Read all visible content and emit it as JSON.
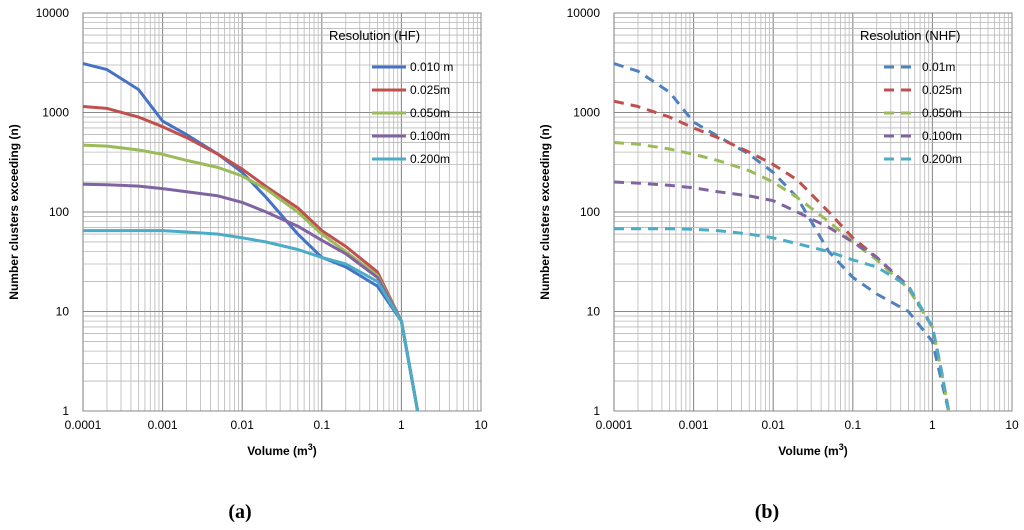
{
  "chart_data": [
    {
      "type": "line",
      "panel_label": "(a)",
      "xlabel": "Volume (m",
      "xlabel_sup": "3",
      "xlabel_end": ")",
      "ylabel": "Number clusters exceeding (n)",
      "x_scale": "log",
      "y_scale": "log",
      "xlim": [
        0.0001,
        10
      ],
      "ylim": [
        1,
        10000
      ],
      "x_ticks": [
        "0.0001",
        "0.001",
        "0.01",
        "0.1",
        "1",
        "10"
      ],
      "y_ticks": [
        "1",
        "10",
        "100",
        "1000",
        "10000"
      ],
      "grid": true,
      "line_style": "solid",
      "legend_title": "Resolution (HF)",
      "legend_position": "top-right",
      "series": [
        {
          "name": "0.010 m",
          "color": "#4472C4",
          "x": [
            0.0001,
            0.0002,
            0.0005,
            0.001,
            0.002,
            0.005,
            0.01,
            0.02,
            0.05,
            0.1,
            0.2,
            0.5,
            1,
            1.3,
            1.6
          ],
          "y": [
            3100,
            2700,
            1700,
            820,
            600,
            380,
            250,
            140,
            60,
            35,
            28,
            18,
            8,
            2.5,
            1
          ]
        },
        {
          "name": "0.025m",
          "color": "#C0504D",
          "x": [
            0.0001,
            0.0002,
            0.0005,
            0.001,
            0.002,
            0.005,
            0.01,
            0.02,
            0.05,
            0.1,
            0.2,
            0.5,
            1,
            1.3,
            1.6
          ],
          "y": [
            1150,
            1100,
            900,
            720,
            560,
            380,
            270,
            180,
            110,
            65,
            45,
            25,
            8,
            2.5,
            1
          ]
        },
        {
          "name": "0.050m",
          "color": "#9BBB59",
          "x": [
            0.0001,
            0.0002,
            0.0005,
            0.001,
            0.002,
            0.005,
            0.01,
            0.02,
            0.05,
            0.1,
            0.2,
            0.5,
            1,
            1.3,
            1.6
          ],
          "y": [
            470,
            460,
            420,
            380,
            330,
            280,
            230,
            170,
            100,
            60,
            40,
            23,
            8,
            2.5,
            1
          ]
        },
        {
          "name": "0.100m",
          "color": "#8064A2",
          "x": [
            0.0001,
            0.0002,
            0.0005,
            0.001,
            0.002,
            0.005,
            0.01,
            0.02,
            0.05,
            0.1,
            0.2,
            0.5,
            1,
            1.3,
            1.6
          ],
          "y": [
            190,
            188,
            182,
            172,
            160,
            145,
            125,
            100,
            72,
            52,
            38,
            22,
            8,
            2.5,
            1
          ]
        },
        {
          "name": "0.200m",
          "color": "#4BACC6",
          "x": [
            0.0001,
            0.0002,
            0.0005,
            0.001,
            0.002,
            0.005,
            0.01,
            0.02,
            0.05,
            0.1,
            0.2,
            0.5,
            1,
            1.3,
            1.6
          ],
          "y": [
            65,
            65,
            65,
            65,
            63,
            60,
            55,
            50,
            42,
            35,
            30,
            20,
            8,
            2.5,
            1
          ]
        }
      ]
    },
    {
      "type": "line",
      "panel_label": "(b)",
      "xlabel": "Volume (m",
      "xlabel_sup": "3",
      "xlabel_end": ")",
      "ylabel": "Number clusters exceeding (n)",
      "x_scale": "log",
      "y_scale": "log",
      "xlim": [
        0.0001,
        10
      ],
      "ylim": [
        1,
        10000
      ],
      "x_ticks": [
        "0.0001",
        "0.001",
        "0.01",
        "0.1",
        "1",
        "10"
      ],
      "y_ticks": [
        "1",
        "10",
        "100",
        "1000",
        "10000"
      ],
      "grid": true,
      "line_style": "dashed",
      "legend_title": "Resolution (NHF)",
      "legend_position": "top-right",
      "series": [
        {
          "name": "0.01m",
          "color": "#4F81BD",
          "x": [
            0.0001,
            0.0002,
            0.0005,
            0.001,
            0.002,
            0.005,
            0.01,
            0.02,
            0.05,
            0.1,
            0.2,
            0.5,
            1,
            1.3,
            1.6
          ],
          "y": [
            3100,
            2600,
            1600,
            800,
            580,
            380,
            250,
            140,
            40,
            22,
            15,
            10,
            5,
            2,
            1
          ]
        },
        {
          "name": "0.025m",
          "color": "#C0504D",
          "x": [
            0.0001,
            0.0002,
            0.0005,
            0.001,
            0.002,
            0.005,
            0.01,
            0.02,
            0.05,
            0.1,
            0.2,
            0.5,
            1,
            1.3,
            1.6
          ],
          "y": [
            1300,
            1150,
            900,
            700,
            560,
            400,
            300,
            210,
            100,
            55,
            35,
            17,
            7,
            2.5,
            1
          ]
        },
        {
          "name": "0.050m",
          "color": "#9BBB59",
          "x": [
            0.0001,
            0.0002,
            0.0005,
            0.001,
            0.002,
            0.005,
            0.01,
            0.02,
            0.05,
            0.1,
            0.2,
            0.5,
            1,
            1.3,
            1.6
          ],
          "y": [
            500,
            480,
            430,
            380,
            330,
            260,
            200,
            140,
            80,
            50,
            33,
            17,
            7,
            2.5,
            1
          ]
        },
        {
          "name": "0.100m",
          "color": "#8064A2",
          "x": [
            0.0001,
            0.0002,
            0.0005,
            0.001,
            0.002,
            0.005,
            0.01,
            0.02,
            0.05,
            0.1,
            0.2,
            0.5,
            1,
            1.3,
            1.6
          ],
          "y": [
            200,
            195,
            185,
            175,
            160,
            145,
            130,
            100,
            70,
            50,
            35,
            18,
            7,
            2.5,
            1
          ]
        },
        {
          "name": "0.200m",
          "color": "#4BACC6",
          "x": [
            0.0001,
            0.0002,
            0.0005,
            0.001,
            0.002,
            0.005,
            0.01,
            0.02,
            0.05,
            0.1,
            0.2,
            0.5,
            1,
            1.3,
            1.6
          ],
          "y": [
            68,
            68,
            68,
            67,
            65,
            60,
            55,
            48,
            40,
            33,
            28,
            18,
            7,
            2.5,
            1
          ]
        }
      ]
    }
  ]
}
